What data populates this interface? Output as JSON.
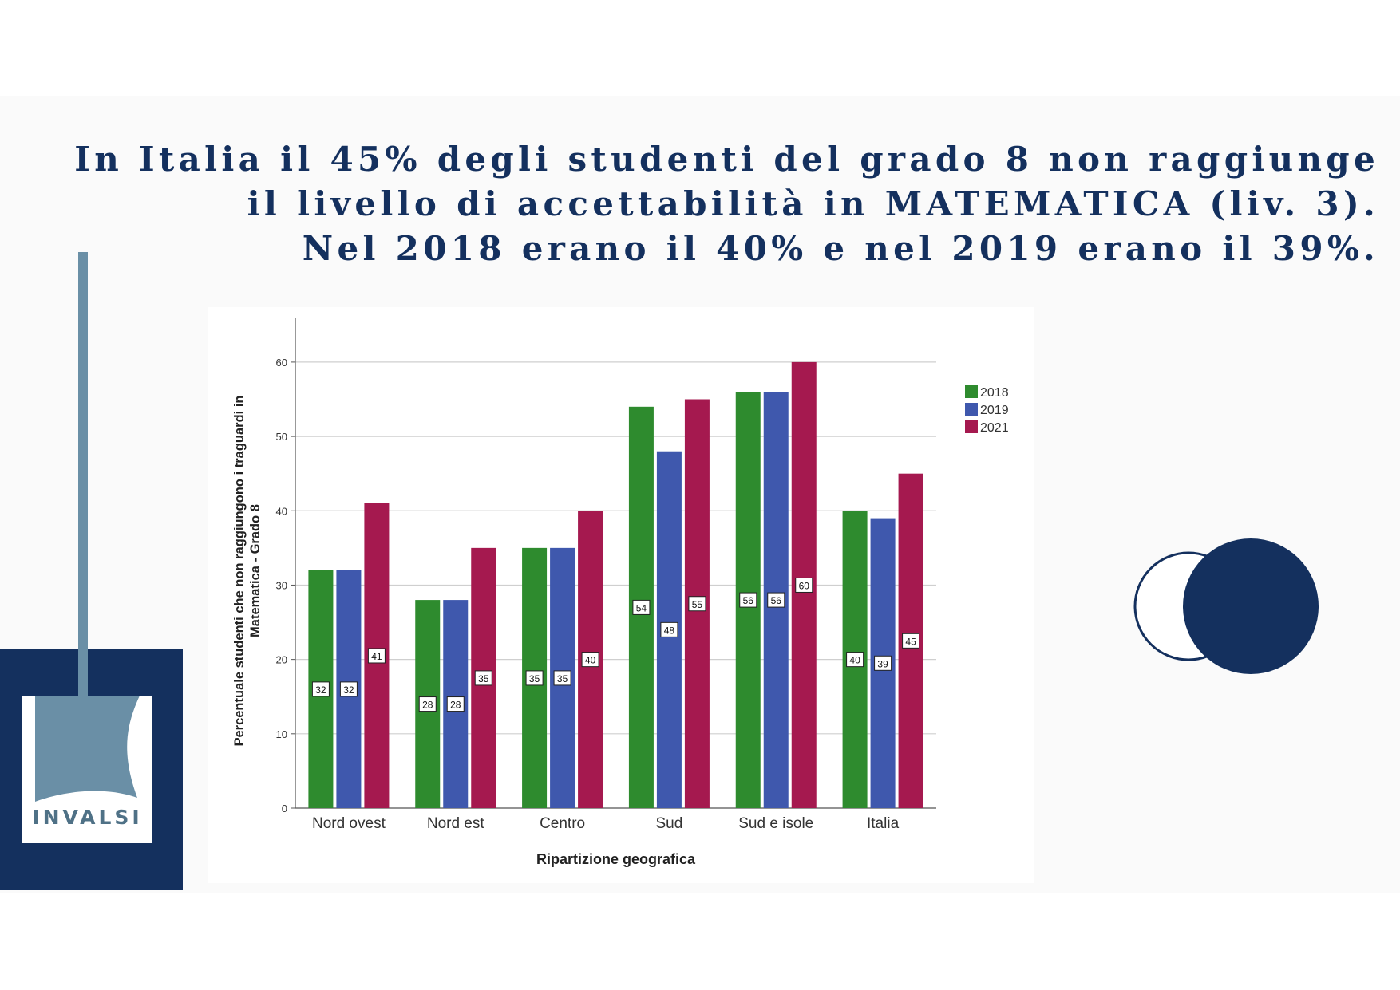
{
  "headline": {
    "line1": "In Italia il 45% degli studenti del grado 8 non raggiunge",
    "line2": "il livello di accettabilità in MATEMATICA (liv. 3).",
    "line3": "Nel 2018 erano il 40% e nel 2019 erano il 39%."
  },
  "logo": {
    "text": "INVALSI",
    "colors": {
      "navy": "#14305e",
      "steel": "#6a8fa6"
    }
  },
  "chart_data": {
    "type": "bar",
    "categories": [
      "Nord ovest",
      "Nord est",
      "Centro",
      "Sud",
      "Sud e isole",
      "Italia"
    ],
    "series": [
      {
        "name": "2018",
        "color": "#2e8b2e",
        "values": [
          32,
          28,
          35,
          54,
          56,
          40
        ],
        "labels": [
          "32",
          "28",
          "35",
          "54",
          "56",
          "40"
        ]
      },
      {
        "name": "2019",
        "color": "#3f58ad",
        "values": [
          32,
          28,
          35,
          48,
          56,
          39
        ],
        "labels": [
          "32",
          "28",
          "35",
          "48",
          "56",
          "39"
        ]
      },
      {
        "name": "2021",
        "color": "#a5194f",
        "values": [
          41,
          35,
          40,
          55,
          60,
          45
        ],
        "labels": [
          "41",
          "35",
          "40",
          "55",
          "60",
          "45"
        ]
      }
    ],
    "xlabel": "Ripartizione geografica",
    "ylabel_lines": [
      "Percentuale studenti che non raggiungono i traguardi in",
      "Matematica - Grado 8"
    ],
    "ylim": [
      0,
      66
    ],
    "yticks": [
      0,
      10,
      20,
      30,
      40,
      50,
      60
    ],
    "grid": true,
    "legend_position": "right"
  }
}
